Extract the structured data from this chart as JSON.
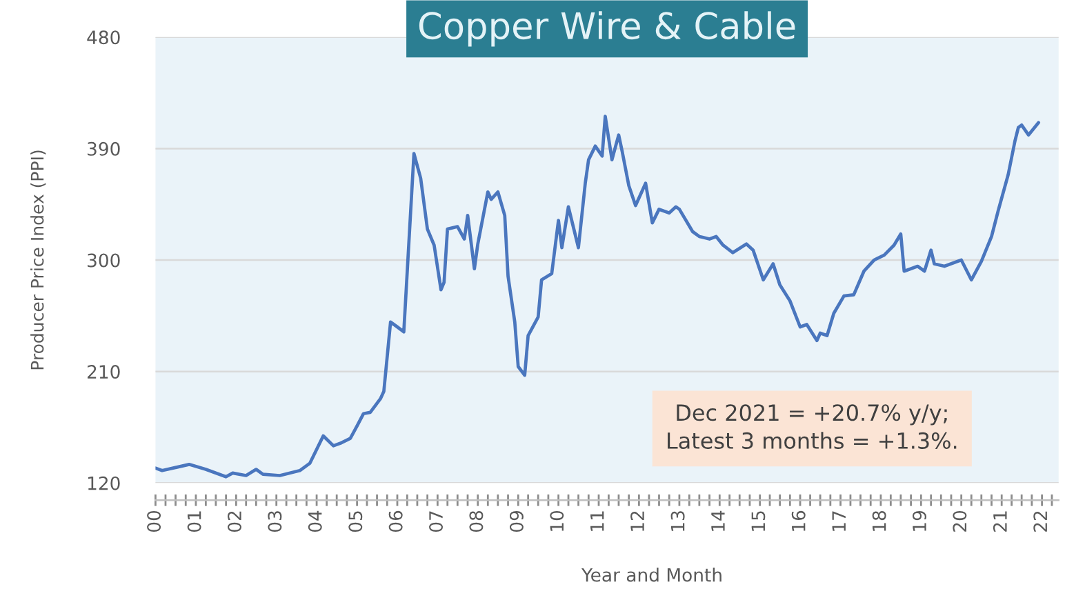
{
  "chart_data": {
    "type": "line",
    "title": "Copper Wire & Cable",
    "xlabel": "Year and Month",
    "ylabel": "Producer Price Index (PPI)",
    "annotations": [
      "Dec 2021 = +20.7% y/y;\nLatest 3 months = +1.3%."
    ],
    "x": [
      "2000-01",
      "2000-03",
      "2000-11",
      "2001-04",
      "2001-10",
      "2001-12",
      "2002-04",
      "2002-07",
      "2002-09",
      "2003-02",
      "2003-08",
      "2003-11",
      "2004-03",
      "2004-06",
      "2004-08",
      "2004-11",
      "2005-01",
      "2005-03",
      "2005-05",
      "2005-08",
      "2005-09",
      "2005-11",
      "2006-01",
      "2006-03",
      "2006-06",
      "2006-08",
      "2006-10",
      "2006-12",
      "2007-02",
      "2007-03",
      "2007-04",
      "2007-07",
      "2007-09",
      "2007-10",
      "2007-12",
      "2008-01",
      "2008-04",
      "2008-05",
      "2008-07",
      "2008-09",
      "2008-10",
      "2008-12",
      "2009-01",
      "2009-03",
      "2009-04",
      "2009-07",
      "2009-08",
      "2009-11",
      "2010-01",
      "2010-02",
      "2010-04",
      "2010-07",
      "2010-09",
      "2010-10",
      "2010-12",
      "2011-02",
      "2011-03",
      "2011-05",
      "2011-07",
      "2011-08",
      "2011-10",
      "2011-12",
      "2012-03",
      "2012-05",
      "2012-07",
      "2012-10",
      "2012-12",
      "2013-01",
      "2013-05",
      "2013-07",
      "2013-10",
      "2013-12",
      "2014-02",
      "2014-05",
      "2014-09",
      "2014-11",
      "2015-02",
      "2015-05",
      "2015-07",
      "2015-10",
      "2016-01",
      "2016-03",
      "2016-06",
      "2016-07",
      "2016-09",
      "2016-11",
      "2017-02",
      "2017-05",
      "2017-08",
      "2017-11",
      "2018-02",
      "2018-05",
      "2018-07",
      "2018-08",
      "2018-12",
      "2019-02",
      "2019-04",
      "2019-05",
      "2019-08",
      "2019-12",
      "2020-01",
      "2020-04",
      "2020-07",
      "2020-10",
      "2020-12",
      "2021-03",
      "2021-05",
      "2021-06",
      "2021-07",
      "2021-09",
      "2021-12"
    ],
    "series": [
      {
        "color": "#4a76be",
        "values": [
          132,
          130,
          135,
          131,
          125,
          128,
          126,
          131,
          127,
          126,
          130,
          136,
          158,
          150,
          152,
          156,
          166,
          176,
          177,
          188,
          194,
          250,
          246,
          242,
          386,
          366,
          325,
          312,
          276,
          282,
          325,
          327,
          317,
          336,
          293,
          313,
          355,
          349,
          355,
          336,
          287,
          250,
          214,
          207,
          239,
          254,
          284,
          289,
          332,
          310,
          343,
          310,
          362,
          381,
          392,
          384,
          416,
          381,
          401,
          388,
          360,
          344,
          362,
          330,
          341,
          338,
          343,
          341,
          323,
          319,
          317,
          319,
          312,
          306,
          313,
          308,
          284,
          297,
          280,
          267,
          246,
          248,
          235,
          241,
          239,
          257,
          271,
          272,
          291,
          300,
          304,
          312,
          321,
          291,
          295,
          291,
          308,
          297,
          295,
          299,
          300,
          284,
          299,
          319,
          340,
          369,
          396,
          407,
          409,
          401,
          411
        ]
      }
    ],
    "xlim": [
      "2000-01",
      "2022-06"
    ],
    "ylim": [
      120,
      480
    ],
    "yticks": [
      120,
      210,
      300,
      390,
      480
    ],
    "xticks": [
      {
        "value": "2000-01",
        "label": "00"
      },
      {
        "value": "2000-04",
        "label": null
      },
      {
        "value": "2000-07",
        "label": null
      },
      {
        "value": "2000-10",
        "label": null
      },
      {
        "value": "2001-01",
        "label": "01"
      },
      {
        "value": "2001-04",
        "label": null
      },
      {
        "value": "2001-07",
        "label": null
      },
      {
        "value": "2001-10",
        "label": null
      },
      {
        "value": "2002-01",
        "label": "02"
      },
      {
        "value": "2002-04",
        "label": null
      },
      {
        "value": "2002-07",
        "label": null
      },
      {
        "value": "2002-10",
        "label": null
      },
      {
        "value": "2003-01",
        "label": "03"
      },
      {
        "value": "2003-04",
        "label": null
      },
      {
        "value": "2003-07",
        "label": null
      },
      {
        "value": "2003-10",
        "label": null
      },
      {
        "value": "2004-01",
        "label": "04"
      },
      {
        "value": "2004-04",
        "label": null
      },
      {
        "value": "2004-07",
        "label": null
      },
      {
        "value": "2004-10",
        "label": null
      },
      {
        "value": "2005-01",
        "label": "05"
      },
      {
        "value": "2005-04",
        "label": null
      },
      {
        "value": "2005-07",
        "label": null
      },
      {
        "value": "2005-10",
        "label": null
      },
      {
        "value": "2006-01",
        "label": "06"
      },
      {
        "value": "2006-04",
        "label": null
      },
      {
        "value": "2006-07",
        "label": null
      },
      {
        "value": "2006-10",
        "label": null
      },
      {
        "value": "2007-01",
        "label": "07"
      },
      {
        "value": "2007-04",
        "label": null
      },
      {
        "value": "2007-07",
        "label": null
      },
      {
        "value": "2007-10",
        "label": null
      },
      {
        "value": "2008-01",
        "label": "08"
      },
      {
        "value": "2008-04",
        "label": null
      },
      {
        "value": "2008-07",
        "label": null
      },
      {
        "value": "2008-10",
        "label": null
      },
      {
        "value": "2009-01",
        "label": "09"
      },
      {
        "value": "2009-04",
        "label": null
      },
      {
        "value": "2009-07",
        "label": null
      },
      {
        "value": "2009-10",
        "label": null
      },
      {
        "value": "2010-01",
        "label": "10"
      },
      {
        "value": "2010-04",
        "label": null
      },
      {
        "value": "2010-07",
        "label": null
      },
      {
        "value": "2010-10",
        "label": null
      },
      {
        "value": "2011-01",
        "label": "11"
      },
      {
        "value": "2011-04",
        "label": null
      },
      {
        "value": "2011-07",
        "label": null
      },
      {
        "value": "2011-10",
        "label": null
      },
      {
        "value": "2012-01",
        "label": "12"
      },
      {
        "value": "2012-04",
        "label": null
      },
      {
        "value": "2012-07",
        "label": null
      },
      {
        "value": "2012-10",
        "label": null
      },
      {
        "value": "2013-01",
        "label": "13"
      },
      {
        "value": "2013-04",
        "label": null
      },
      {
        "value": "2013-07",
        "label": null
      },
      {
        "value": "2013-10",
        "label": null
      },
      {
        "value": "2014-01",
        "label": "14"
      },
      {
        "value": "2014-04",
        "label": null
      },
      {
        "value": "2014-07",
        "label": null
      },
      {
        "value": "2014-10",
        "label": null
      },
      {
        "value": "2015-01",
        "label": "15"
      },
      {
        "value": "2015-04",
        "label": null
      },
      {
        "value": "2015-07",
        "label": null
      },
      {
        "value": "2015-10",
        "label": null
      },
      {
        "value": "2016-01",
        "label": "16"
      },
      {
        "value": "2016-04",
        "label": null
      },
      {
        "value": "2016-07",
        "label": null
      },
      {
        "value": "2016-10",
        "label": null
      },
      {
        "value": "2017-01",
        "label": "17"
      },
      {
        "value": "2017-04",
        "label": null
      },
      {
        "value": "2017-07",
        "label": null
      },
      {
        "value": "2017-10",
        "label": null
      },
      {
        "value": "2018-01",
        "label": "18"
      },
      {
        "value": "2018-04",
        "label": null
      },
      {
        "value": "2018-07",
        "label": null
      },
      {
        "value": "2018-10",
        "label": null
      },
      {
        "value": "2019-01",
        "label": "19"
      },
      {
        "value": "2019-04",
        "label": null
      },
      {
        "value": "2019-07",
        "label": null
      },
      {
        "value": "2019-10",
        "label": null
      },
      {
        "value": "2020-01",
        "label": "20"
      },
      {
        "value": "2020-04",
        "label": null
      },
      {
        "value": "2020-07",
        "label": null
      },
      {
        "value": "2020-10",
        "label": null
      },
      {
        "value": "2021-01",
        "label": "21"
      },
      {
        "value": "2021-04",
        "label": null
      },
      {
        "value": "2021-07",
        "label": null
      },
      {
        "value": "2021-10",
        "label": null
      },
      {
        "value": "2022-01",
        "label": "22"
      },
      {
        "value": "2022-04",
        "label": null
      }
    ],
    "grid": "y"
  }
}
